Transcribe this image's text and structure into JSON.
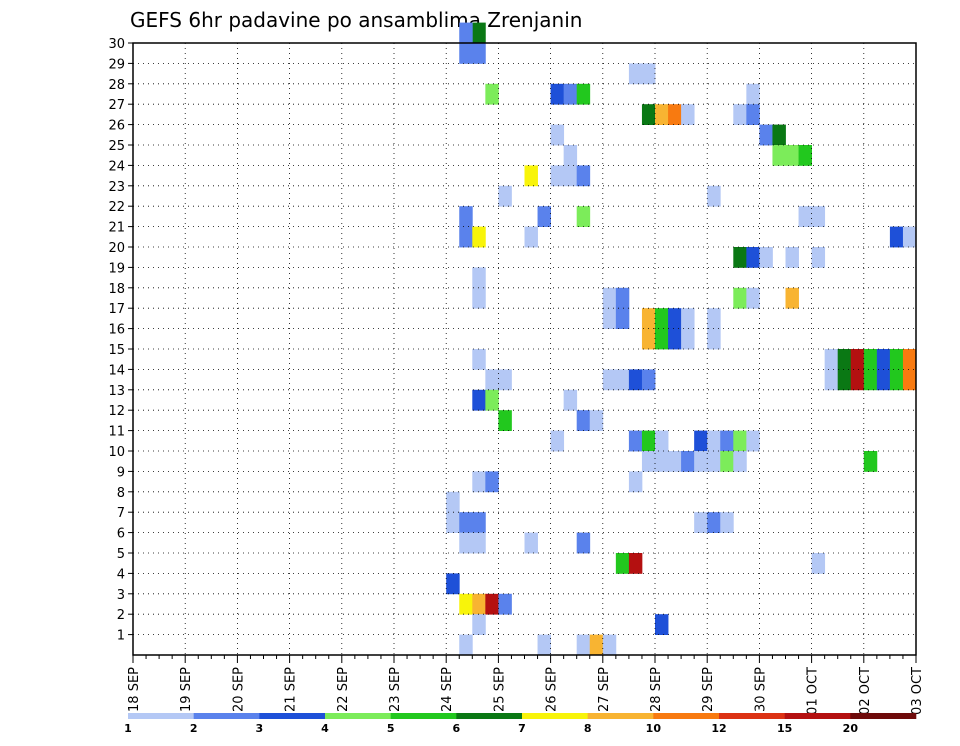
{
  "chart_data": {
    "type": "heatmap",
    "title": "GEFS 6hr padavine po ansamblima Zrenjanin",
    "xlabel": "",
    "ylabel": "",
    "x_tick_labels": [
      "18 SEP",
      "19 SEP",
      "20 SEP",
      "21 SEP",
      "22 SEP",
      "23 SEP",
      "24 SEP",
      "25 SEP",
      "26 SEP",
      "27 SEP",
      "28 SEP",
      "29 SEP",
      "30 SEP",
      "01 OCT",
      "02 OCT",
      "03 OCT"
    ],
    "y_tick_labels": [
      "1",
      "2",
      "3",
      "4",
      "5",
      "6",
      "7",
      "8",
      "9",
      "10",
      "11",
      "12",
      "13",
      "14",
      "15",
      "16",
      "17",
      "18",
      "19",
      "20",
      "21",
      "22",
      "23",
      "24",
      "25",
      "26",
      "27",
      "28",
      "29",
      "30"
    ],
    "xlim_days": [
      0,
      15
    ],
    "ylim": [
      0,
      30
    ],
    "grid": true,
    "legend": {
      "placement": "bottom",
      "labels": [
        "1",
        "2",
        "3",
        "4",
        "5",
        "6",
        "7",
        "8",
        "10",
        "12",
        "15",
        "20"
      ],
      "colors": [
        "#b4c8f5",
        "#5a82ec",
        "#1e50d8",
        "#7cec5a",
        "#22c81e",
        "#0a7814",
        "#f8f40a",
        "#f8b432",
        "#f87a10",
        "#dc3214",
        "#b41010",
        "#6e0a0a"
      ]
    },
    "cells_note": "Each cell: member (row), time index t in 6-hour steps from 18 SEP 00z, color class index (0..11) into legend.colors",
    "cells": [
      {
        "m": 30,
        "t": 26,
        "c": 5
      },
      {
        "m": 29,
        "t": 26,
        "c": 1
      },
      {
        "m": 30,
        "t": 25,
        "c": 1
      },
      {
        "m": 29,
        "t": 25,
        "c": 1
      },
      {
        "m": 28,
        "t": 38,
        "c": 0
      },
      {
        "m": 28,
        "t": 39,
        "c": 0
      },
      {
        "m": 27,
        "t": 27,
        "c": 3
      },
      {
        "m": 27,
        "t": 32,
        "c": 2
      },
      {
        "m": 27,
        "t": 33,
        "c": 1
      },
      {
        "m": 27,
        "t": 34,
        "c": 4
      },
      {
        "m": 27,
        "t": 47,
        "c": 0
      },
      {
        "m": 26,
        "t": 39,
        "c": 5
      },
      {
        "m": 26,
        "t": 40,
        "c": 7
      },
      {
        "m": 26,
        "t": 41,
        "c": 8
      },
      {
        "m": 26,
        "t": 42,
        "c": 0
      },
      {
        "m": 26,
        "t": 46,
        "c": 0
      },
      {
        "m": 26,
        "t": 47,
        "c": 1
      },
      {
        "m": 25,
        "t": 32,
        "c": 0
      },
      {
        "m": 25,
        "t": 48,
        "c": 1
      },
      {
        "m": 25,
        "t": 49,
        "c": 5
      },
      {
        "m": 24,
        "t": 33,
        "c": 0
      },
      {
        "m": 24,
        "t": 49,
        "c": 3
      },
      {
        "m": 24,
        "t": 50,
        "c": 3
      },
      {
        "m": 24,
        "t": 51,
        "c": 4
      },
      {
        "m": 23,
        "t": 30,
        "c": 6
      },
      {
        "m": 23,
        "t": 32,
        "c": 0
      },
      {
        "m": 23,
        "t": 33,
        "c": 0
      },
      {
        "m": 23,
        "t": 34,
        "c": 1
      },
      {
        "m": 22,
        "t": 28,
        "c": 0
      },
      {
        "m": 22,
        "t": 44,
        "c": 0
      },
      {
        "m": 21,
        "t": 25,
        "c": 1
      },
      {
        "m": 21,
        "t": 31,
        "c": 1
      },
      {
        "m": 21,
        "t": 34,
        "c": 3
      },
      {
        "m": 21,
        "t": 51,
        "c": 0
      },
      {
        "m": 21,
        "t": 52,
        "c": 0
      },
      {
        "m": 20,
        "t": 25,
        "c": 1
      },
      {
        "m": 20,
        "t": 26,
        "c": 6
      },
      {
        "m": 20,
        "t": 30,
        "c": 0
      },
      {
        "m": 20,
        "t": 58,
        "c": 2
      },
      {
        "m": 20,
        "t": 59,
        "c": 0
      },
      {
        "m": 19,
        "t": 46,
        "c": 5
      },
      {
        "m": 19,
        "t": 47,
        "c": 2
      },
      {
        "m": 19,
        "t": 48,
        "c": 0
      },
      {
        "m": 19,
        "t": 50,
        "c": 0
      },
      {
        "m": 19,
        "t": 52,
        "c": 0
      },
      {
        "m": 18,
        "t": 26,
        "c": 0
      },
      {
        "m": 17,
        "t": 26,
        "c": 0
      },
      {
        "m": 17,
        "t": 36,
        "c": 0
      },
      {
        "m": 17,
        "t": 37,
        "c": 1
      },
      {
        "m": 17,
        "t": 46,
        "c": 3
      },
      {
        "m": 17,
        "t": 47,
        "c": 0
      },
      {
        "m": 17,
        "t": 50,
        "c": 7
      },
      {
        "m": 16,
        "t": 36,
        "c": 0
      },
      {
        "m": 16,
        "t": 37,
        "c": 1
      },
      {
        "m": 16,
        "t": 39,
        "c": 7
      },
      {
        "m": 16,
        "t": 40,
        "c": 4
      },
      {
        "m": 16,
        "t": 41,
        "c": 2
      },
      {
        "m": 16,
        "t": 42,
        "c": 0
      },
      {
        "m": 16,
        "t": 44,
        "c": 0
      },
      {
        "m": 15,
        "t": 39,
        "c": 7
      },
      {
        "m": 15,
        "t": 40,
        "c": 4
      },
      {
        "m": 15,
        "t": 41,
        "c": 2
      },
      {
        "m": 15,
        "t": 42,
        "c": 0
      },
      {
        "m": 15,
        "t": 44,
        "c": 0
      },
      {
        "m": 14,
        "t": 26,
        "c": 0
      },
      {
        "m": 14,
        "t": 53,
        "c": 0
      },
      {
        "m": 14,
        "t": 54,
        "c": 5
      },
      {
        "m": 14,
        "t": 55,
        "c": 10
      },
      {
        "m": 14,
        "t": 56,
        "c": 4
      },
      {
        "m": 14,
        "t": 57,
        "c": 2
      },
      {
        "m": 14,
        "t": 58,
        "c": 4
      },
      {
        "m": 14,
        "t": 59,
        "c": 8
      },
      {
        "m": 13,
        "t": 27,
        "c": 0
      },
      {
        "m": 13,
        "t": 28,
        "c": 0
      },
      {
        "m": 13,
        "t": 36,
        "c": 0
      },
      {
        "m": 13,
        "t": 37,
        "c": 0
      },
      {
        "m": 13,
        "t": 38,
        "c": 2
      },
      {
        "m": 13,
        "t": 39,
        "c": 1
      },
      {
        "m": 13,
        "t": 53,
        "c": 0
      },
      {
        "m": 13,
        "t": 54,
        "c": 5
      },
      {
        "m": 13,
        "t": 55,
        "c": 10
      },
      {
        "m": 13,
        "t": 56,
        "c": 4
      },
      {
        "m": 13,
        "t": 57,
        "c": 2
      },
      {
        "m": 13,
        "t": 58,
        "c": 4
      },
      {
        "m": 13,
        "t": 59,
        "c": 8
      },
      {
        "m": 12,
        "t": 26,
        "c": 2
      },
      {
        "m": 12,
        "t": 27,
        "c": 3
      },
      {
        "m": 12,
        "t": 33,
        "c": 0
      },
      {
        "m": 11,
        "t": 28,
        "c": 4
      },
      {
        "m": 11,
        "t": 34,
        "c": 1
      },
      {
        "m": 11,
        "t": 35,
        "c": 0
      },
      {
        "m": 10,
        "t": 32,
        "c": 0
      },
      {
        "m": 10,
        "t": 38,
        "c": 1
      },
      {
        "m": 10,
        "t": 39,
        "c": 4
      },
      {
        "m": 10,
        "t": 40,
        "c": 0
      },
      {
        "m": 10,
        "t": 43,
        "c": 2
      },
      {
        "m": 10,
        "t": 44,
        "c": 0
      },
      {
        "m": 10,
        "t": 45,
        "c": 1
      },
      {
        "m": 10,
        "t": 46,
        "c": 3
      },
      {
        "m": 10,
        "t": 47,
        "c": 0
      },
      {
        "m": 9,
        "t": 39,
        "c": 0
      },
      {
        "m": 9,
        "t": 40,
        "c": 0
      },
      {
        "m": 9,
        "t": 41,
        "c": 0
      },
      {
        "m": 9,
        "t": 42,
        "c": 1
      },
      {
        "m": 9,
        "t": 43,
        "c": 0
      },
      {
        "m": 9,
        "t": 44,
        "c": 0
      },
      {
        "m": 9,
        "t": 45,
        "c": 3
      },
      {
        "m": 9,
        "t": 46,
        "c": 0
      },
      {
        "m": 9,
        "t": 56,
        "c": 4
      },
      {
        "m": 8,
        "t": 26,
        "c": 0
      },
      {
        "m": 8,
        "t": 27,
        "c": 1
      },
      {
        "m": 8,
        "t": 38,
        "c": 0
      },
      {
        "m": 7,
        "t": 24,
        "c": 0
      },
      {
        "m": 6,
        "t": 24,
        "c": 0
      },
      {
        "m": 6,
        "t": 25,
        "c": 1
      },
      {
        "m": 6,
        "t": 26,
        "c": 1
      },
      {
        "m": 6,
        "t": 43,
        "c": 0
      },
      {
        "m": 6,
        "t": 44,
        "c": 1
      },
      {
        "m": 6,
        "t": 45,
        "c": 0
      },
      {
        "m": 5,
        "t": 25,
        "c": 0
      },
      {
        "m": 5,
        "t": 26,
        "c": 0
      },
      {
        "m": 5,
        "t": 30,
        "c": 0
      },
      {
        "m": 5,
        "t": 34,
        "c": 1
      },
      {
        "m": 4,
        "t": 37,
        "c": 4
      },
      {
        "m": 4,
        "t": 38,
        "c": 10
      },
      {
        "m": 4,
        "t": 52,
        "c": 0
      },
      {
        "m": 3,
        "t": 24,
        "c": 2
      },
      {
        "m": 2,
        "t": 25,
        "c": 6
      },
      {
        "m": 2,
        "t": 26,
        "c": 7
      },
      {
        "m": 2,
        "t": 27,
        "c": 10
      },
      {
        "m": 2,
        "t": 28,
        "c": 1
      },
      {
        "m": 1,
        "t": 26,
        "c": 0
      },
      {
        "m": 1,
        "t": 40,
        "c": 2
      },
      {
        "m": 0,
        "t": 25,
        "c": 0
      },
      {
        "m": 0,
        "t": 31,
        "c": 0
      },
      {
        "m": 0,
        "t": 34,
        "c": 0
      },
      {
        "m": 0,
        "t": 35,
        "c": 7
      },
      {
        "m": 0,
        "t": 36,
        "c": 0
      }
    ]
  }
}
